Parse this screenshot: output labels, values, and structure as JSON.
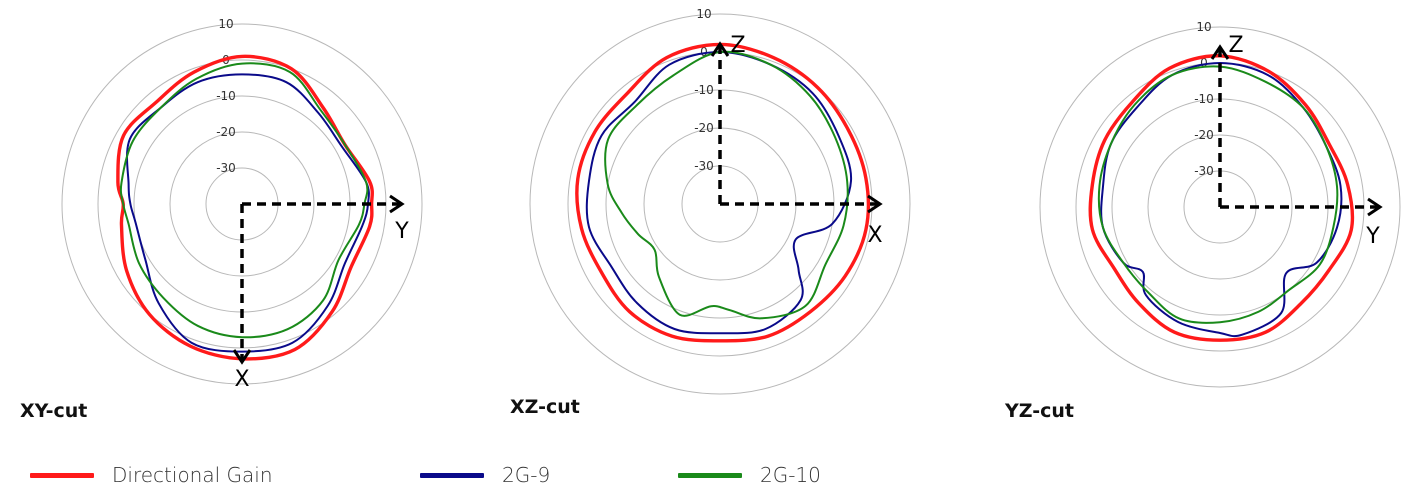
{
  "chart_data": [
    {
      "type": "polar",
      "title": "XY-cut",
      "r_ticks": [
        10,
        0,
        -10,
        -20,
        -30
      ],
      "r_range": [
        -40,
        10
      ],
      "axis_labels": [
        "Y",
        "X"
      ],
      "angle_convention": "degrees clockwise from top",
      "series": [
        {
          "name": "Directional Gain",
          "color": "#ff1a1a",
          "points": [
            [
              0,
              1
            ],
            [
              20,
              0
            ],
            [
              40,
              -5
            ],
            [
              60,
              -7
            ],
            [
              80,
              -4
            ],
            [
              90,
              -4
            ],
            [
              100,
              -4
            ],
            [
              120,
              -5
            ],
            [
              140,
              -1
            ],
            [
              160,
              3
            ],
            [
              180,
              3
            ],
            [
              200,
              2
            ],
            [
              220,
              0
            ],
            [
              240,
              -3
            ],
            [
              260,
              -6
            ],
            [
              270,
              -7
            ],
            [
              280,
              -5
            ],
            [
              300,
              -2
            ],
            [
              320,
              -3
            ],
            [
              340,
              -1
            ]
          ]
        },
        {
          "name": "2G-9",
          "color": "#0a0a8a",
          "points": [
            [
              0,
              -4
            ],
            [
              20,
              -4
            ],
            [
              40,
              -7
            ],
            [
              60,
              -8
            ],
            [
              80,
              -5
            ],
            [
              90,
              -5
            ],
            [
              100,
              -6
            ],
            [
              120,
              -7
            ],
            [
              140,
              -3
            ],
            [
              160,
              1
            ],
            [
              180,
              1
            ],
            [
              200,
              1
            ],
            [
              220,
              -4
            ],
            [
              240,
              -9
            ],
            [
              260,
              -10
            ],
            [
              270,
              -9
            ],
            [
              280,
              -8
            ],
            [
              300,
              -4
            ],
            [
              320,
              -5
            ],
            [
              340,
              -4
            ]
          ]
        },
        {
          "name": "2G-10",
          "color": "#1a8a1a",
          "points": [
            [
              0,
              -1
            ],
            [
              20,
              -1
            ],
            [
              40,
              -6
            ],
            [
              60,
              -7
            ],
            [
              80,
              -5
            ],
            [
              90,
              -6
            ],
            [
              100,
              -7
            ],
            [
              120,
              -9
            ],
            [
              140,
              -5
            ],
            [
              160,
              -3
            ],
            [
              180,
              -3
            ],
            [
              200,
              -4
            ],
            [
              220,
              -6
            ],
            [
              240,
              -7
            ],
            [
              260,
              -8
            ],
            [
              270,
              -7
            ],
            [
              280,
              -6
            ],
            [
              300,
              -5
            ],
            [
              320,
              -5
            ],
            [
              340,
              -3
            ]
          ]
        }
      ]
    },
    {
      "type": "polar",
      "title": "XZ-cut",
      "r_ticks": [
        10,
        0,
        -10,
        -20,
        -30
      ],
      "r_range": [
        -40,
        10
      ],
      "axis_labels": [
        "Z",
        "X"
      ],
      "angle_convention": "degrees clockwise from top",
      "series": [
        {
          "name": "Directional Gain",
          "color": "#ff1a1a",
          "points": [
            [
              0,
              2
            ],
            [
              20,
              1
            ],
            [
              40,
              0
            ],
            [
              60,
              -1
            ],
            [
              80,
              -1
            ],
            [
              100,
              -1
            ],
            [
              120,
              -2
            ],
            [
              140,
              -3
            ],
            [
              160,
              -3
            ],
            [
              180,
              -4
            ],
            [
              200,
              -3
            ],
            [
              220,
              -3
            ],
            [
              240,
              -4
            ],
            [
              260,
              -3
            ],
            [
              280,
              -2
            ],
            [
              300,
              -2
            ],
            [
              320,
              -2
            ],
            [
              340,
              1
            ]
          ]
        },
        {
          "name": "2G-9",
          "color": "#0a0a8a",
          "points": [
            [
              0,
              0
            ],
            [
              20,
              -1
            ],
            [
              40,
              -2
            ],
            [
              60,
              -4
            ],
            [
              80,
              -5
            ],
            [
              100,
              -10
            ],
            [
              115,
              -18
            ],
            [
              130,
              -13
            ],
            [
              140,
              -7
            ],
            [
              160,
              -5
            ],
            [
              180,
              -6
            ],
            [
              200,
              -5
            ],
            [
              220,
              -6
            ],
            [
              240,
              -7
            ],
            [
              260,
              -5
            ],
            [
              280,
              -5
            ],
            [
              300,
              -4
            ],
            [
              320,
              -5
            ],
            [
              340,
              -1
            ]
          ]
        },
        {
          "name": "2G-10",
          "color": "#1a8a1a",
          "points": [
            [
              0,
              0
            ],
            [
              20,
              -1
            ],
            [
              40,
              -3
            ],
            [
              60,
              -5
            ],
            [
              80,
              -6
            ],
            [
              100,
              -7
            ],
            [
              120,
              -8
            ],
            [
              140,
              -5
            ],
            [
              160,
              -8
            ],
            [
              175,
              -12
            ],
            [
              185,
              -13
            ],
            [
              200,
              -9
            ],
            [
              220,
              -15
            ],
            [
              235,
              -19
            ],
            [
              250,
              -17
            ],
            [
              265,
              -14
            ],
            [
              280,
              -10
            ],
            [
              300,
              -6
            ],
            [
              320,
              -6
            ],
            [
              340,
              -4
            ]
          ]
        }
      ]
    },
    {
      "type": "polar",
      "title": "YZ-cut",
      "r_ticks": [
        10,
        0,
        -10,
        -20,
        -30
      ],
      "r_range": [
        -40,
        10
      ],
      "axis_labels": [
        "Z",
        "Y"
      ],
      "angle_convention": "degrees clockwise from top",
      "series": [
        {
          "name": "Directional Gain",
          "color": "#ff1a1a",
          "points": [
            [
              0,
              2
            ],
            [
              20,
              0
            ],
            [
              40,
              -3
            ],
            [
              60,
              -5
            ],
            [
              80,
              -4
            ],
            [
              100,
              -3
            ],
            [
              120,
              -5
            ],
            [
              140,
              -5
            ],
            [
              160,
              -3
            ],
            [
              180,
              -3
            ],
            [
              200,
              -3
            ],
            [
              220,
              -5
            ],
            [
              240,
              -6
            ],
            [
              260,
              -4
            ],
            [
              280,
              -4
            ],
            [
              300,
              -3
            ],
            [
              320,
              -2
            ],
            [
              340,
              1
            ]
          ]
        },
        {
          "name": "2G-9",
          "color": "#0a0a8a",
          "points": [
            [
              0,
              0
            ],
            [
              20,
              -1
            ],
            [
              40,
              -4
            ],
            [
              60,
              -6
            ],
            [
              80,
              -6
            ],
            [
              100,
              -7
            ],
            [
              120,
              -9
            ],
            [
              135,
              -14
            ],
            [
              150,
              -6
            ],
            [
              170,
              -4
            ],
            [
              180,
              -5
            ],
            [
              200,
              -6
            ],
            [
              220,
              -8
            ],
            [
              230,
              -12
            ],
            [
              240,
              -9
            ],
            [
              260,
              -7
            ],
            [
              280,
              -7
            ],
            [
              300,
              -5
            ],
            [
              320,
              -4
            ],
            [
              340,
              -1
            ]
          ]
        },
        {
          "name": "2G-10",
          "color": "#1a8a1a",
          "points": [
            [
              0,
              -1
            ],
            [
              20,
              -3
            ],
            [
              40,
              -4
            ],
            [
              60,
              -6
            ],
            [
              80,
              -7
            ],
            [
              100,
              -8
            ],
            [
              120,
              -8
            ],
            [
              140,
              -10
            ],
            [
              160,
              -9
            ],
            [
              180,
              -8
            ],
            [
              200,
              -7
            ],
            [
              220,
              -9
            ],
            [
              240,
              -9
            ],
            [
              260,
              -7
            ],
            [
              280,
              -6
            ],
            [
              300,
              -5
            ],
            [
              320,
              -3
            ],
            [
              340,
              -1
            ]
          ]
        }
      ]
    }
  ],
  "legend": [
    {
      "label": "Directional Gain",
      "color": "#ff1a1a"
    },
    {
      "label": "2G-9",
      "color": "#0a0a8a"
    },
    {
      "label": "2G-10",
      "color": "#1a8a1a"
    }
  ]
}
